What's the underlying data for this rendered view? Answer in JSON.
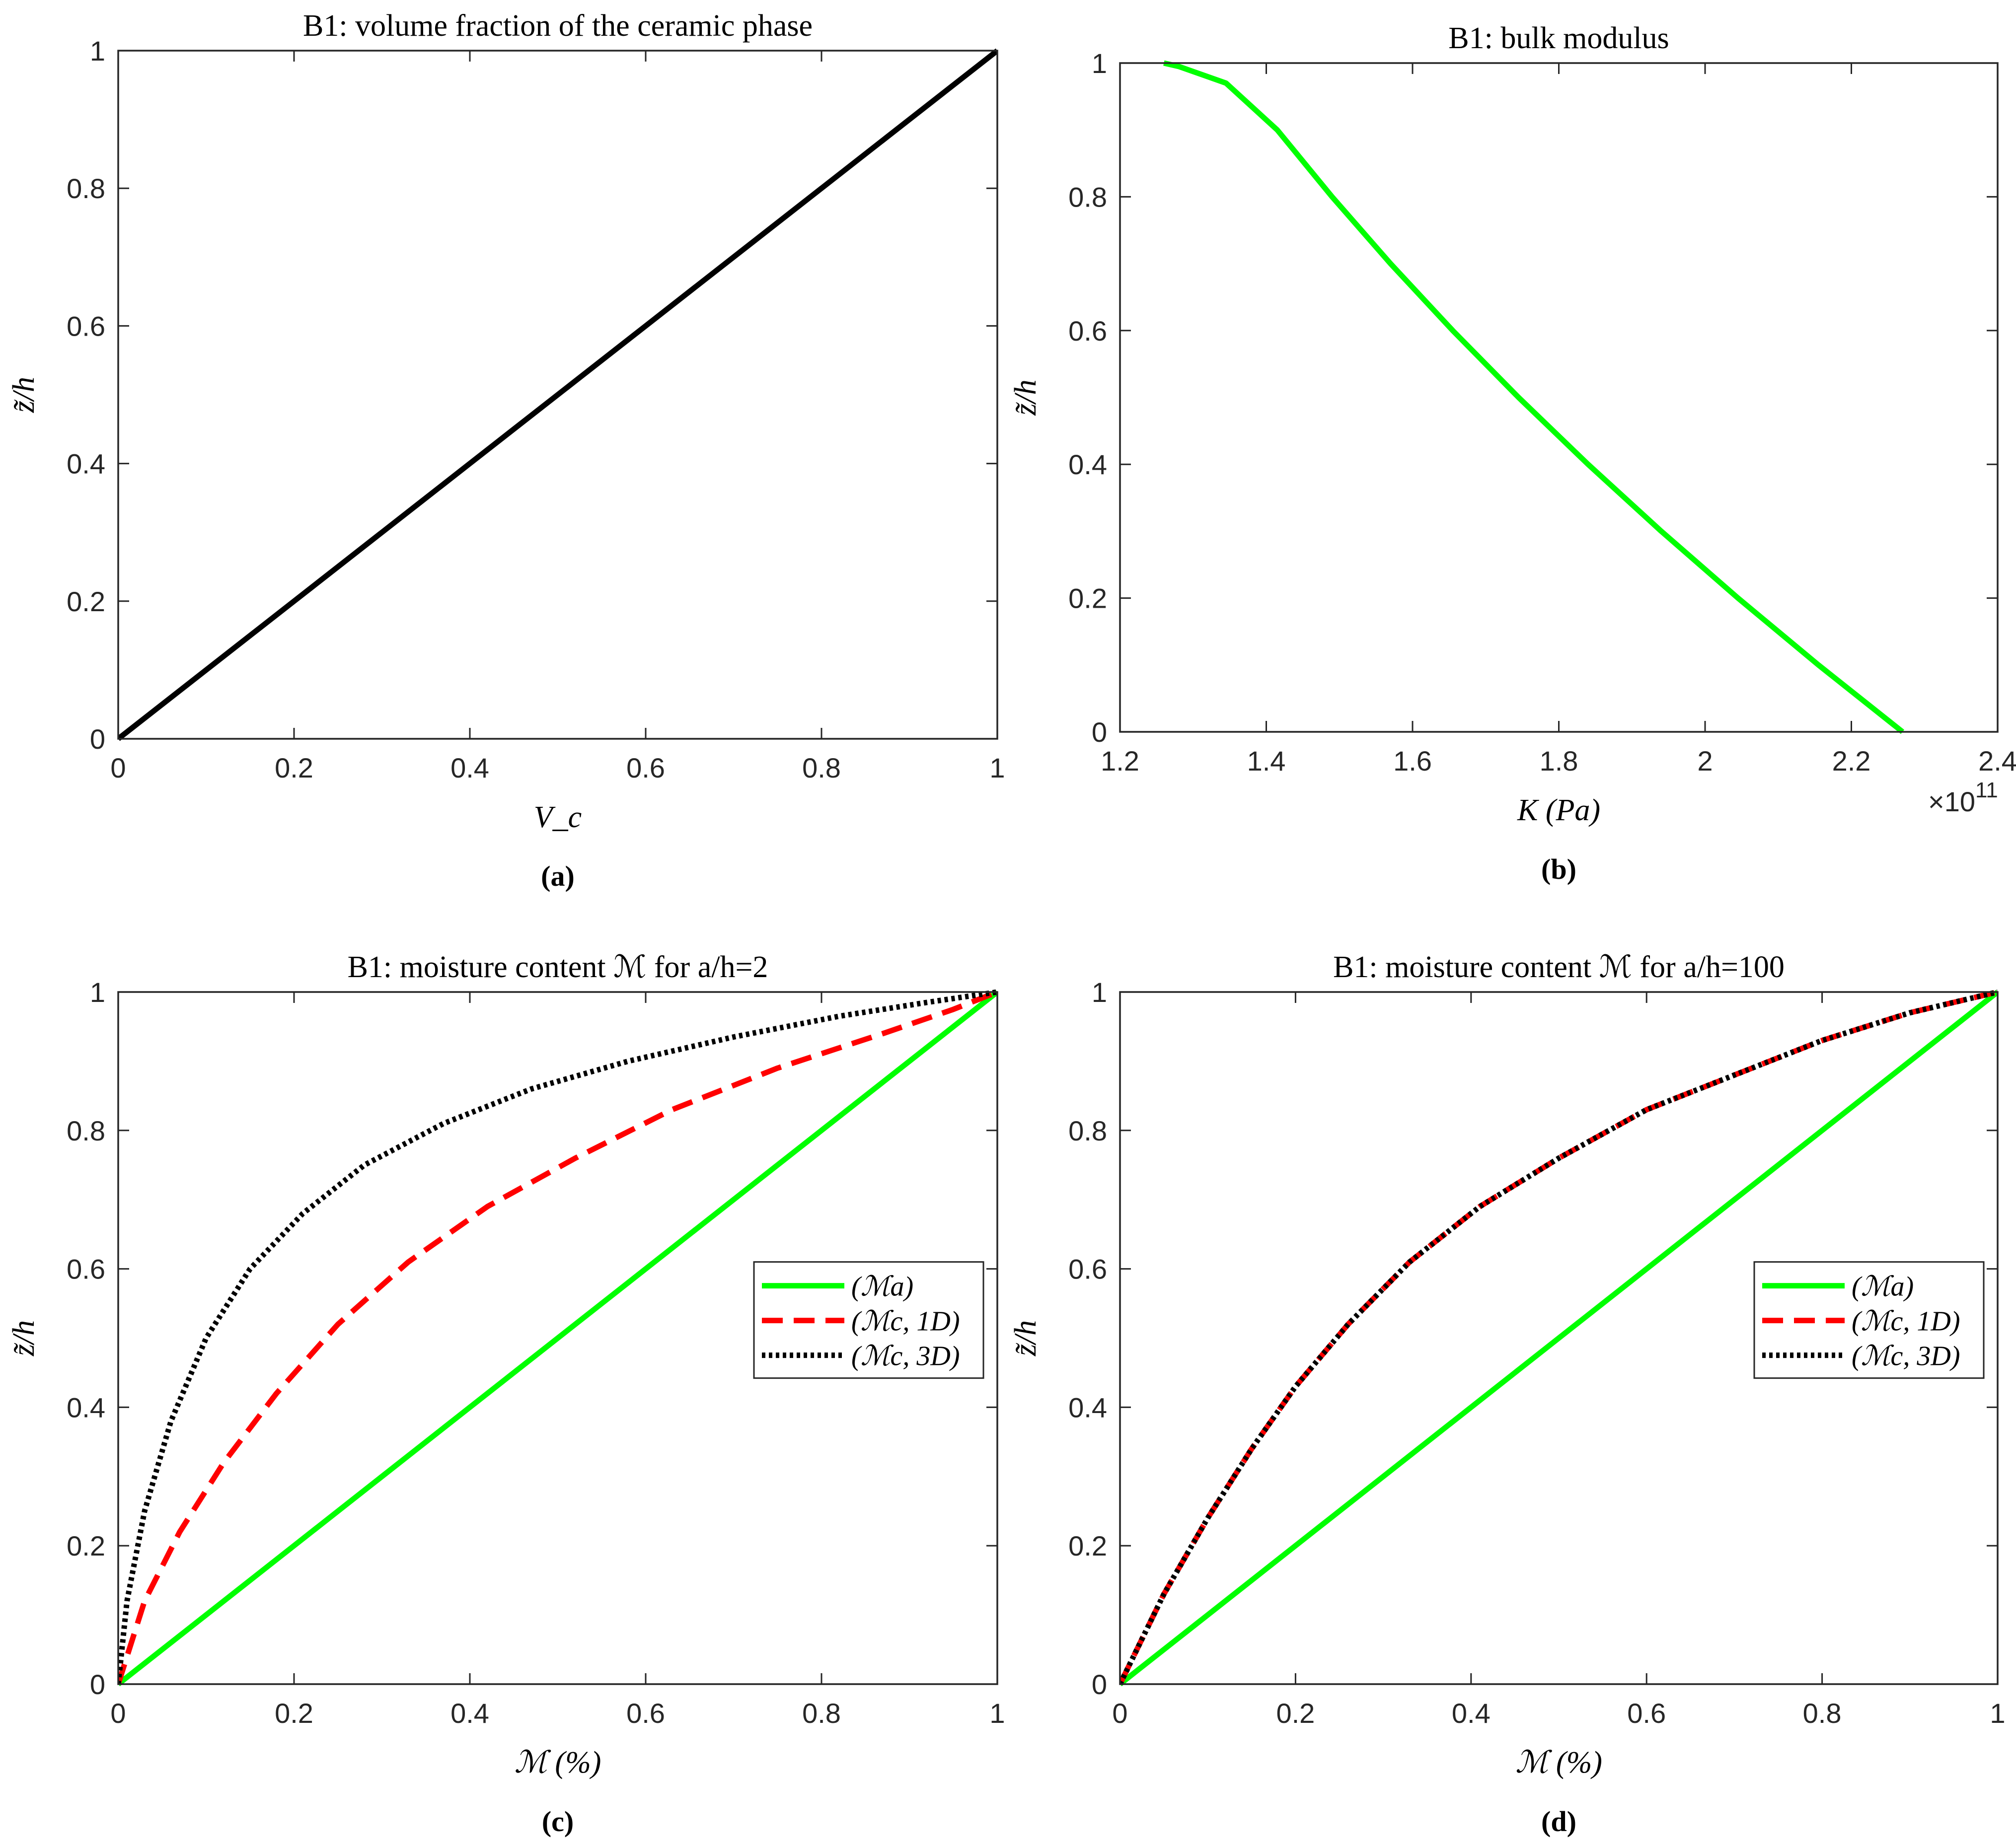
{
  "chart_data": [
    {
      "id": "a",
      "type": "line",
      "title": "B1: volume fraction of the ceramic phase",
      "xlabel": "V_c",
      "ylabel": "z̃/h",
      "caption": "(a)",
      "xlim": [
        0,
        1
      ],
      "ylim": [
        0,
        1
      ],
      "xticks": [
        0,
        0.2,
        0.4,
        0.6,
        0.8,
        1
      ],
      "yticks": [
        0,
        0.2,
        0.4,
        0.6,
        0.8,
        1
      ],
      "xtick_labels": [
        "0",
        "0.2",
        "0.4",
        "0.6",
        "0.8",
        "1"
      ],
      "ytick_labels": [
        "0",
        "0.2",
        "0.4",
        "0.6",
        "0.8",
        "1"
      ],
      "x_exponent": "",
      "legend": null,
      "series": [
        {
          "name": "V_c",
          "color": "#000000",
          "dash": "solid",
          "x": [
            0,
            0.2,
            0.4,
            0.6,
            0.8,
            1
          ],
          "y": [
            0,
            0.2,
            0.4,
            0.6,
            0.8,
            1
          ]
        }
      ]
    },
    {
      "id": "b",
      "type": "line",
      "title": "B1: bulk modulus",
      "xlabel": "K (Pa)",
      "ylabel": "z̃/h",
      "caption": "(b)",
      "xlim": [
        1.2,
        2.4
      ],
      "ylim": [
        0,
        1
      ],
      "xticks": [
        1.2,
        1.4,
        1.6,
        1.8,
        2.0,
        2.2,
        2.4
      ],
      "yticks": [
        0,
        0.2,
        0.4,
        0.6,
        0.8,
        1
      ],
      "xtick_labels": [
        "1.2",
        "1.4",
        "1.6",
        "1.8",
        "2",
        "2.2",
        "2.4"
      ],
      "ytick_labels": [
        "0",
        "0.2",
        "0.4",
        "0.6",
        "0.8",
        "1"
      ],
      "x_exponent": "×10",
      "x_exponent_power": "11",
      "legend": null,
      "series": [
        {
          "name": "K",
          "color": "#00ff00",
          "dash": "solid",
          "x": [
            2.27,
            2.155,
            2.045,
            1.94,
            1.84,
            1.745,
            1.655,
            1.57,
            1.49,
            1.415,
            1.345,
            1.28,
            1.26
          ],
          "y": [
            0,
            0.1,
            0.2,
            0.3,
            0.4,
            0.5,
            0.6,
            0.7,
            0.8,
            0.9,
            0.97,
            0.995,
            1.0
          ]
        }
      ]
    },
    {
      "id": "c",
      "type": "line",
      "title": "B1: moisture content ℳ for a/h=2",
      "xlabel": "ℳ (%)",
      "ylabel": "z̃/h",
      "caption": "(c)",
      "xlim": [
        0,
        1
      ],
      "ylim": [
        0,
        1
      ],
      "xticks": [
        0,
        0.2,
        0.4,
        0.6,
        0.8,
        1
      ],
      "yticks": [
        0,
        0.2,
        0.4,
        0.6,
        0.8,
        1
      ],
      "xtick_labels": [
        "0",
        "0.2",
        "0.4",
        "0.6",
        "0.8",
        "1"
      ],
      "ytick_labels": [
        "0",
        "0.2",
        "0.4",
        "0.6",
        "0.8",
        "1"
      ],
      "x_exponent": "",
      "legend": {
        "position": "right-middle",
        "entries": [
          "(ℳa)",
          "(ℳc, 1D)",
          "(ℳc, 3D)"
        ]
      },
      "series": [
        {
          "name": "(ℳa)",
          "color": "#00ff00",
          "dash": "solid",
          "x": [
            0,
            1
          ],
          "y": [
            0,
            1
          ]
        },
        {
          "name": "(ℳc, 1D)",
          "color": "#ff0000",
          "dash": "dashed",
          "x": [
            0,
            0.03,
            0.07,
            0.12,
            0.18,
            0.25,
            0.33,
            0.42,
            0.52,
            0.63,
            0.75,
            0.87,
            0.95,
            1.0
          ],
          "y": [
            0,
            0.12,
            0.22,
            0.32,
            0.42,
            0.52,
            0.61,
            0.69,
            0.76,
            0.83,
            0.89,
            0.94,
            0.975,
            1.0
          ]
        },
        {
          "name": "(ℳc, 3D)",
          "color": "#000000",
          "dash": "dotted",
          "x": [
            0,
            0.01,
            0.03,
            0.06,
            0.1,
            0.15,
            0.21,
            0.28,
            0.37,
            0.47,
            0.58,
            0.7,
            0.82,
            0.92,
            1.0
          ],
          "y": [
            0,
            0.12,
            0.25,
            0.38,
            0.5,
            0.6,
            0.68,
            0.75,
            0.81,
            0.86,
            0.9,
            0.935,
            0.965,
            0.985,
            1.0
          ]
        }
      ]
    },
    {
      "id": "d",
      "type": "line",
      "title": "B1: moisture content ℳ for a/h=100",
      "xlabel": "ℳ (%)",
      "ylabel": "z̃/h",
      "caption": "(d)",
      "xlim": [
        0,
        1
      ],
      "ylim": [
        0,
        1
      ],
      "xticks": [
        0,
        0.2,
        0.4,
        0.6,
        0.8,
        1
      ],
      "yticks": [
        0,
        0.2,
        0.4,
        0.6,
        0.8,
        1
      ],
      "xtick_labels": [
        "0",
        "0.2",
        "0.4",
        "0.6",
        "0.8",
        "1"
      ],
      "ytick_labels": [
        "0",
        "0.2",
        "0.4",
        "0.6",
        "0.8",
        "1"
      ],
      "x_exponent": "",
      "legend": {
        "position": "right-middle",
        "entries": [
          "(ℳa)",
          "(ℳc, 1D)",
          "(ℳc, 3D)"
        ]
      },
      "series": [
        {
          "name": "(ℳa)",
          "color": "#00ff00",
          "dash": "solid",
          "x": [
            0,
            1
          ],
          "y": [
            0,
            1
          ]
        },
        {
          "name": "(ℳc, 1D)",
          "color": "#ff0000",
          "dash": "dashed",
          "x": [
            0,
            0.05,
            0.1,
            0.15,
            0.2,
            0.26,
            0.33,
            0.41,
            0.5,
            0.6,
            0.7,
            0.8,
            0.9,
            1.0
          ],
          "y": [
            0,
            0.13,
            0.24,
            0.34,
            0.43,
            0.52,
            0.61,
            0.69,
            0.76,
            0.83,
            0.88,
            0.93,
            0.97,
            1.0
          ]
        },
        {
          "name": "(ℳc, 3D)",
          "color": "#000000",
          "dash": "dotted",
          "x": [
            0,
            0.05,
            0.1,
            0.15,
            0.2,
            0.26,
            0.33,
            0.41,
            0.5,
            0.6,
            0.7,
            0.8,
            0.9,
            1.0
          ],
          "y": [
            0,
            0.13,
            0.24,
            0.34,
            0.43,
            0.52,
            0.61,
            0.69,
            0.76,
            0.83,
            0.88,
            0.93,
            0.97,
            1.0
          ]
        }
      ]
    }
  ]
}
